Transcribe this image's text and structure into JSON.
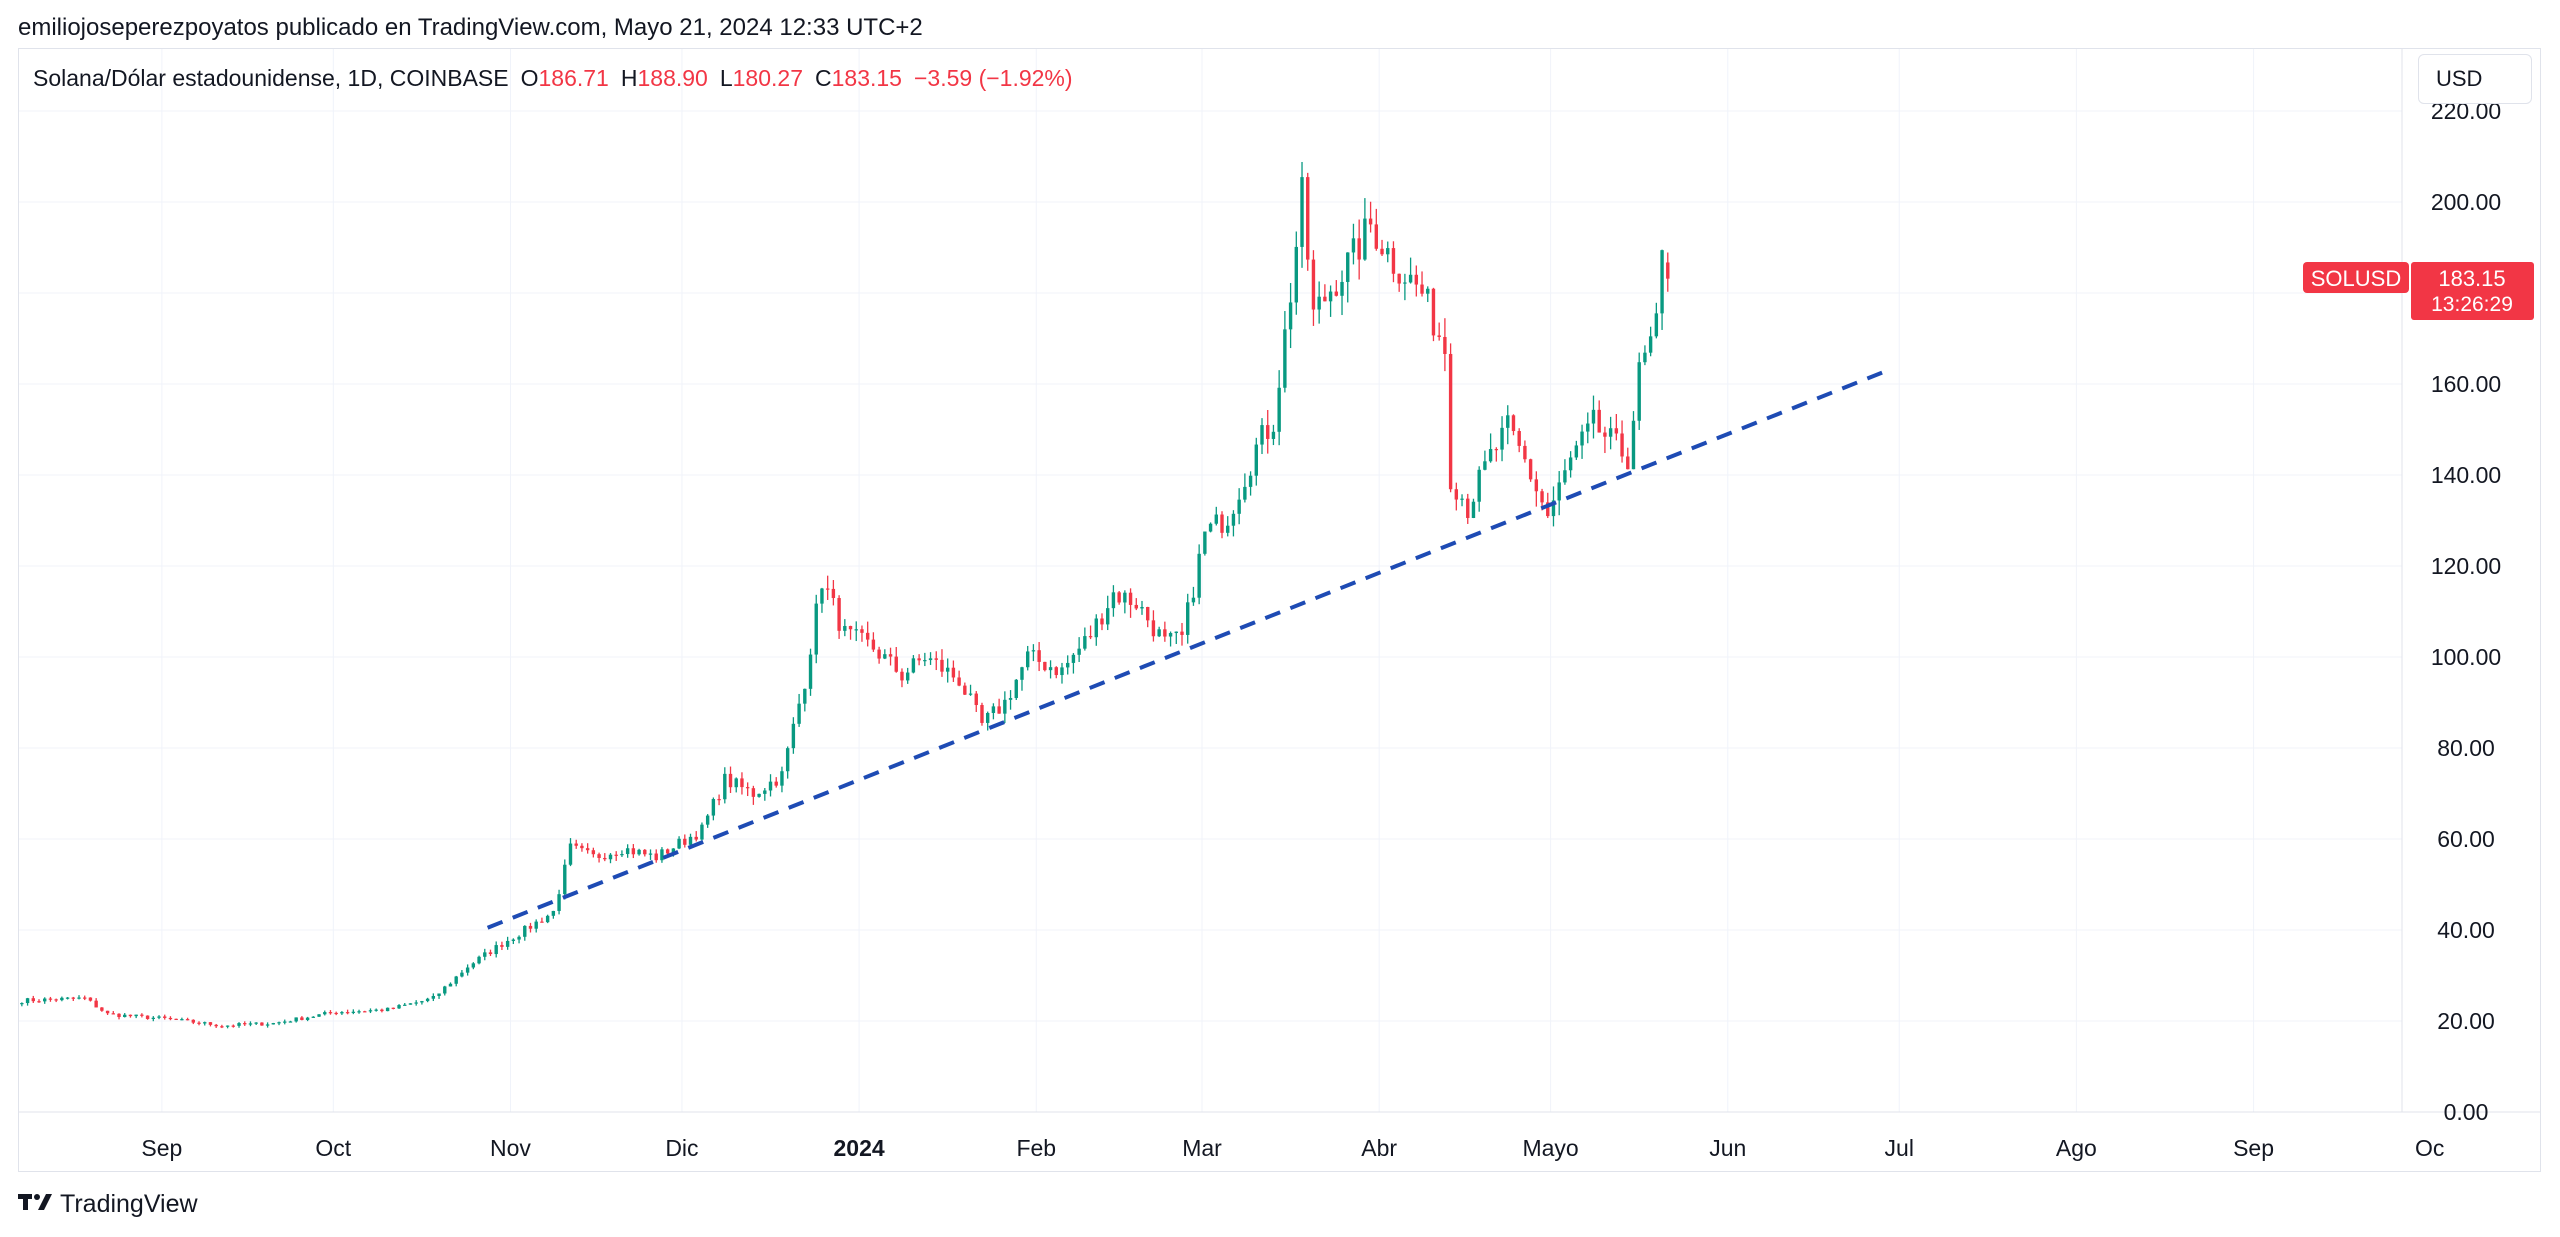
{
  "header": {
    "attribution": "emiliojoseperezpoyatos publicado en TradingView.com, Mayo 21, 2024 12:33 UTC+2"
  },
  "legend": {
    "symbol": "Solana/Dólar estadounidense, 1D, COINBASE",
    "o_label": "O",
    "o_value": "186.71",
    "h_label": "H",
    "h_value": "188.90",
    "l_label": "L",
    "l_value": "180.27",
    "c_label": "C",
    "c_value": "183.15",
    "change": "−3.59 (−1.92%)"
  },
  "currency_button": {
    "label": "USD"
  },
  "price_tag": {
    "symbol": "SOLUSD",
    "price": "183.15",
    "countdown": "13:26:29"
  },
  "footer": {
    "brand": "TradingView",
    "logo_icon": "tradingview-logo-icon"
  },
  "colors": {
    "up": "#089981",
    "down": "#f23645",
    "trendline": "#1e4bb4",
    "grid": "#f0f3fa"
  },
  "chart_data": {
    "type": "candlestick",
    "symbol": "SOLUSD",
    "ylim": [
      0,
      220
    ],
    "y_ticks": [
      0,
      20,
      40,
      60,
      80,
      100,
      120,
      140,
      160,
      180,
      200,
      220
    ],
    "y_tick_labels": [
      "0.00",
      "20.00",
      "40.00",
      "60.00",
      "80.00",
      "100.00",
      "120.00",
      "140.00",
      "160.00",
      "",
      "200.00",
      "220.00"
    ],
    "x_tick_labels": [
      {
        "label": "Sep",
        "date": "2023-09-01",
        "bold": false
      },
      {
        "label": "Oct",
        "date": "2023-10-01",
        "bold": false
      },
      {
        "label": "Nov",
        "date": "2023-11-01",
        "bold": false
      },
      {
        "label": "Dic",
        "date": "2023-12-01",
        "bold": false
      },
      {
        "label": "2024",
        "date": "2024-01-01",
        "bold": true
      },
      {
        "label": "Feb",
        "date": "2024-02-01",
        "bold": false
      },
      {
        "label": "Mar",
        "date": "2024-03-01",
        "bold": false
      },
      {
        "label": "Abr",
        "date": "2024-04-01",
        "bold": false
      },
      {
        "label": "Mayo",
        "date": "2024-05-01",
        "bold": false
      },
      {
        "label": "Jun",
        "date": "2024-06-01",
        "bold": false
      },
      {
        "label": "Jul",
        "date": "2024-07-01",
        "bold": false
      },
      {
        "label": "Ago",
        "date": "2024-08-01",
        "bold": false
      },
      {
        "label": "Sep",
        "date": "2024-09-01",
        "bold": false
      },
      {
        "label": "Oc",
        "date": "2024-10-01",
        "bold": false
      }
    ],
    "x_range": [
      "2023-08-07",
      "2024-09-30"
    ],
    "close_path": [
      [
        "2023-08-07",
        24.5
      ],
      [
        "2023-08-18",
        25
      ],
      [
        "2023-08-22",
        21.5
      ],
      [
        "2023-09-01",
        20.5
      ],
      [
        "2023-09-11",
        19
      ],
      [
        "2023-09-20",
        19.5
      ],
      [
        "2023-10-01",
        22
      ],
      [
        "2023-10-10",
        22.5
      ],
      [
        "2023-10-18",
        25
      ],
      [
        "2023-10-24",
        32
      ],
      [
        "2023-10-30",
        37
      ],
      [
        "2023-11-03",
        40
      ],
      [
        "2023-11-08",
        44
      ],
      [
        "2023-11-11",
        58
      ],
      [
        "2023-11-15",
        56
      ],
      [
        "2023-11-20",
        58
      ],
      [
        "2023-11-26",
        56
      ],
      [
        "2023-12-04",
        62
      ],
      [
        "2023-12-08",
        73
      ],
      [
        "2023-12-13",
        70
      ],
      [
        "2023-12-18",
        74
      ],
      [
        "2023-12-22",
        95
      ],
      [
        "2023-12-25",
        117
      ],
      [
        "2023-12-29",
        105
      ],
      [
        "2024-01-03",
        102
      ],
      [
        "2024-01-08",
        96
      ],
      [
        "2024-01-12",
        100
      ],
      [
        "2024-01-18",
        95
      ],
      [
        "2024-01-22",
        85
      ],
      [
        "2024-01-26",
        90
      ],
      [
        "2024-01-30",
        100
      ],
      [
        "2024-02-05",
        97
      ],
      [
        "2024-02-10",
        105
      ],
      [
        "2024-02-14",
        114
      ],
      [
        "2024-02-18",
        112
      ],
      [
        "2024-02-23",
        103
      ],
      [
        "2024-02-26",
        104
      ],
      [
        "2024-03-01",
        127
      ],
      [
        "2024-03-05",
        131
      ],
      [
        "2024-03-10",
        146
      ],
      [
        "2024-03-13",
        152
      ],
      [
        "2024-03-16",
        180
      ],
      [
        "2024-03-18",
        201
      ],
      [
        "2024-03-20",
        175
      ],
      [
        "2024-03-24",
        183
      ],
      [
        "2024-03-27",
        188
      ],
      [
        "2024-03-30",
        195
      ],
      [
        "2024-04-03",
        187
      ],
      [
        "2024-04-08",
        180
      ],
      [
        "2024-04-12",
        168
      ],
      [
        "2024-04-13",
        140
      ],
      [
        "2024-04-16",
        133
      ],
      [
        "2024-04-20",
        144
      ],
      [
        "2024-04-23",
        150
      ],
      [
        "2024-04-26",
        143
      ],
      [
        "2024-04-30",
        131
      ],
      [
        "2024-05-04",
        143
      ],
      [
        "2024-05-08",
        151
      ],
      [
        "2024-05-12",
        146
      ],
      [
        "2024-05-14",
        144
      ],
      [
        "2024-05-16",
        162
      ],
      [
        "2024-05-19",
        172
      ],
      [
        "2024-05-20",
        187
      ],
      [
        "2024-05-21",
        183.15
      ]
    ],
    "last_candle": {
      "date": "2024-05-21",
      "open": 186.71,
      "high": 188.9,
      "low": 180.27,
      "close": 183.15
    },
    "trendline": {
      "start": [
        "2023-10-28",
        40.5
      ],
      "end": [
        "2024-06-28",
        162.5
      ],
      "style": "dashed"
    },
    "annotations": [
      {
        "type": "price_label",
        "text": "SOLUSD",
        "value": 183.15
      },
      {
        "type": "countdown",
        "text": "13:26:29"
      }
    ],
    "currency": "USD"
  }
}
